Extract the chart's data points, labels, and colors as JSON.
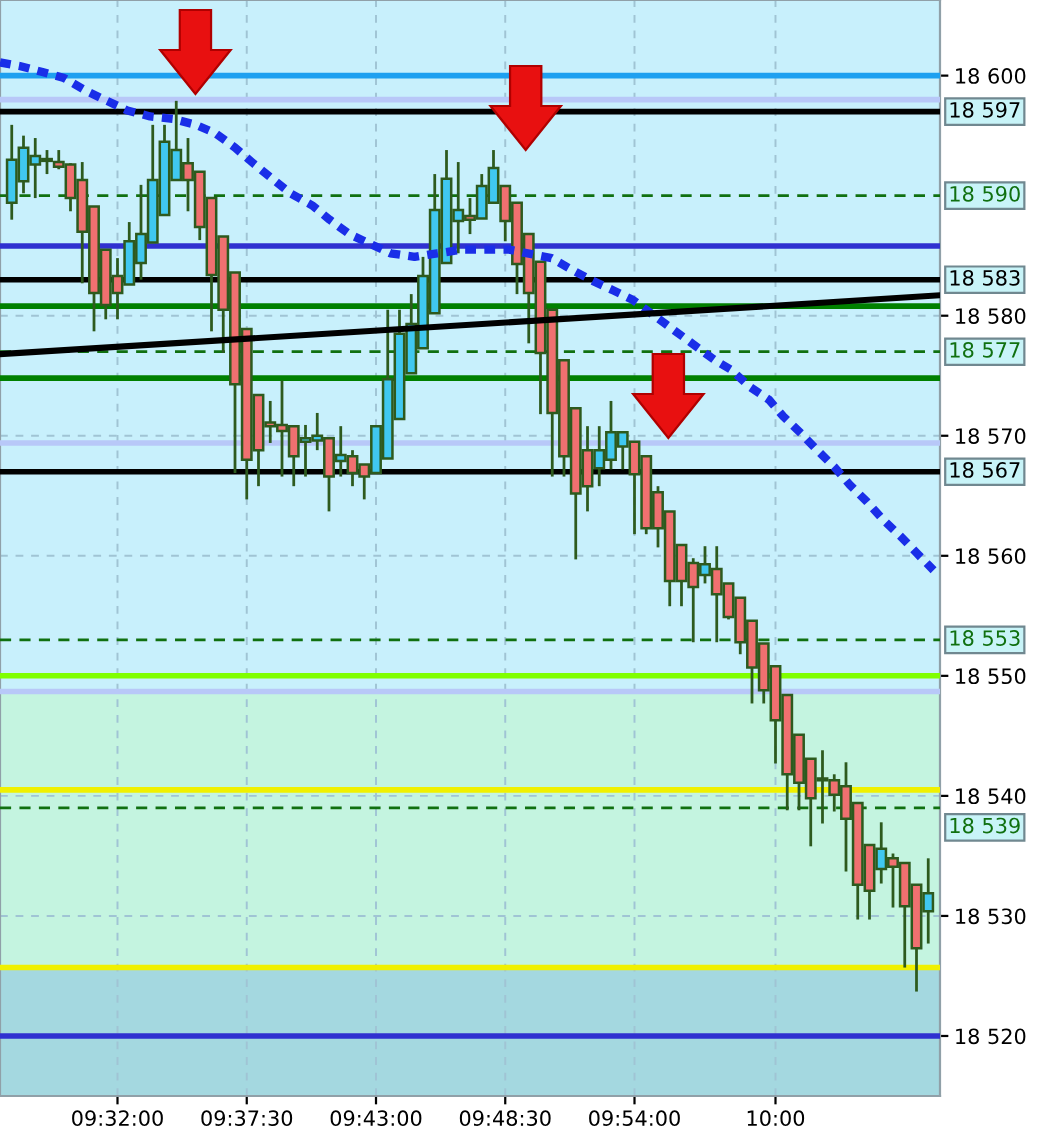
{
  "chart_data": {
    "type": "candlestick",
    "x": [
      9.45833,
      9.46667,
      9.475,
      9.48333,
      9.49167,
      9.5,
      9.50833,
      9.51667,
      9.525,
      9.53333,
      9.54167,
      9.55,
      9.55833,
      9.56667,
      9.575,
      9.58333,
      9.59167,
      9.6,
      9.60833,
      9.61667,
      9.625,
      9.63333,
      9.64167,
      9.65,
      9.65833,
      9.66667,
      9.675,
      9.68333,
      9.69167,
      9.7,
      9.70833,
      9.71667,
      9.725,
      9.73333,
      9.74167,
      9.75,
      9.75833,
      9.76667,
      9.775,
      9.78333,
      9.79167,
      9.8,
      9.80833,
      9.81667,
      9.825,
      9.83333,
      9.84167,
      9.85,
      9.85833,
      9.86667,
      9.875,
      9.88333,
      9.89167,
      9.9,
      9.90833,
      9.91667,
      9.925,
      9.93333,
      9.94167,
      9.95,
      9.95833,
      9.96667,
      9.975,
      9.98333,
      9.99167,
      10.0,
      10.00833,
      10.01667,
      10.025,
      10.03333,
      10.04167,
      10.05,
      10.05833,
      10.06667,
      10.075,
      10.08333,
      10.09167,
      10.1,
      10.10833
    ],
    "ohlc": [
      [
        18589.4,
        18595.9,
        18588.0,
        18593.0
      ],
      [
        18591.2,
        18595.0,
        18590.2,
        18594.0
      ],
      [
        18592.6,
        18594.8,
        18589.8,
        18593.3
      ],
      [
        18593.0,
        18593.8,
        18591.8,
        18592.9
      ],
      [
        18592.8,
        18593.8,
        18592.2,
        18592.4
      ],
      [
        18592.6,
        18592.7,
        18588.7,
        18589.8
      ],
      [
        18591.3,
        18592.8,
        18582.7,
        18587.0
      ],
      [
        18589.1,
        18589.1,
        18578.7,
        18581.9
      ],
      [
        18585.5,
        18585.5,
        18579.7,
        18580.9
      ],
      [
        18583.3,
        18584.8,
        18579.7,
        18581.9
      ],
      [
        18582.6,
        18587.8,
        18582.6,
        18586.2
      ],
      [
        18584.4,
        18590.9,
        18583.0,
        18586.8
      ],
      [
        18586.1,
        18595.9,
        18586.1,
        18591.3
      ],
      [
        18588.4,
        18595.9,
        18588.4,
        18594.5
      ],
      [
        18591.3,
        18597.9,
        18591.3,
        18593.8
      ],
      [
        18592.7,
        18594.8,
        18588.7,
        18591.3
      ],
      [
        18592.0,
        18592.0,
        18586.3,
        18587.4
      ],
      [
        18589.8,
        18589.8,
        18578.7,
        18583.4
      ],
      [
        18586.6,
        18586.6,
        18576.9,
        18580.5
      ],
      [
        18583.6,
        18583.6,
        18566.9,
        18574.3
      ],
      [
        18578.9,
        18578.9,
        18564.7,
        18568.0
      ],
      [
        18573.4,
        18573.4,
        18565.8,
        18568.8
      ],
      [
        18571.1,
        18572.9,
        18569.4,
        18570.8
      ],
      [
        18570.9,
        18574.6,
        18566.6,
        18570.4
      ],
      [
        18570.8,
        18570.8,
        18565.8,
        18568.3
      ],
      [
        18569.5,
        18570.9,
        18566.6,
        18569.8
      ],
      [
        18569.6,
        18571.9,
        18568.8,
        18570.0
      ],
      [
        18569.8,
        18569.8,
        18563.7,
        18566.6
      ],
      [
        18567.9,
        18570.8,
        18566.6,
        18568.4
      ],
      [
        18568.3,
        18568.8,
        18565.8,
        18566.9
      ],
      [
        18567.6,
        18567.6,
        18564.7,
        18566.6
      ],
      [
        18566.9,
        18570.8,
        18566.9,
        18570.8
      ],
      [
        18568.1,
        18580.5,
        18568.1,
        18574.7
      ],
      [
        18571.4,
        18580.5,
        18571.4,
        18578.5
      ],
      [
        18575.2,
        18581.8,
        18575.2,
        18579.3
      ],
      [
        18577.3,
        18584.9,
        18577.3,
        18583.3
      ],
      [
        18580.2,
        18591.8,
        18580.2,
        18588.8
      ],
      [
        18584.4,
        18593.8,
        18584.4,
        18591.4
      ],
      [
        18587.9,
        18592.8,
        18585.2,
        18588.8
      ],
      [
        18588.3,
        18589.8,
        18586.8,
        18588.0
      ],
      [
        18588.1,
        18591.8,
        18588.1,
        18590.8
      ],
      [
        18589.4,
        18593.8,
        18589.4,
        18592.3
      ],
      [
        18590.8,
        18590.8,
        18586.2,
        18587.9
      ],
      [
        18589.4,
        18589.4,
        18581.8,
        18584.3
      ],
      [
        18586.8,
        18586.8,
        18577.7,
        18581.9
      ],
      [
        18584.5,
        18584.5,
        18571.8,
        18576.9
      ],
      [
        18580.5,
        18580.5,
        18566.6,
        18571.9
      ],
      [
        18576.3,
        18576.3,
        18566.6,
        18568.3
      ],
      [
        18572.3,
        18572.3,
        18559.7,
        18565.2
      ],
      [
        18568.8,
        18570.8,
        18563.7,
        18565.8
      ],
      [
        18567.3,
        18570.8,
        18565.8,
        18568.8
      ],
      [
        18568.0,
        18572.9,
        18567.2,
        18570.3
      ],
      [
        18569.1,
        18570.3,
        18567.2,
        18570.3
      ],
      [
        18569.5,
        18569.5,
        18561.8,
        18566.8
      ],
      [
        18568.3,
        18568.3,
        18561.8,
        18562.3
      ],
      [
        18565.3,
        18565.8,
        18560.7,
        18562.3
      ],
      [
        18563.7,
        18563.7,
        18555.8,
        18557.9
      ],
      [
        18560.9,
        18560.9,
        18555.8,
        18557.9
      ],
      [
        18559.4,
        18559.8,
        18552.8,
        18557.4
      ],
      [
        18558.4,
        18560.8,
        18557.7,
        18559.3
      ],
      [
        18558.9,
        18560.8,
        18552.8,
        18556.8
      ],
      [
        18557.7,
        18557.7,
        18554.7,
        18554.9
      ],
      [
        18556.5,
        18556.5,
        18551.8,
        18552.8
      ],
      [
        18554.6,
        18554.6,
        18547.7,
        18550.7
      ],
      [
        18552.7,
        18552.7,
        18547.7,
        18548.8
      ],
      [
        18550.8,
        18550.8,
        18542.7,
        18546.3
      ],
      [
        18548.4,
        18548.4,
        18538.8,
        18541.8
      ],
      [
        18545.1,
        18545.1,
        18538.8,
        18541.1
      ],
      [
        18543.1,
        18543.1,
        18535.8,
        18539.8
      ],
      [
        18541.3,
        18543.8,
        18537.7,
        18541.3
      ],
      [
        18541.3,
        18541.8,
        18538.7,
        18540.1
      ],
      [
        18540.8,
        18542.8,
        18533.7,
        18538.1
      ],
      [
        18539.4,
        18539.4,
        18529.7,
        18532.6
      ],
      [
        18535.9,
        18535.9,
        18529.7,
        18532.1
      ],
      [
        18533.9,
        18537.8,
        18532.7,
        18535.6
      ],
      [
        18534.8,
        18535.2,
        18530.7,
        18534.1
      ],
      [
        18534.4,
        18534.4,
        18525.7,
        18530.8
      ],
      [
        18532.6,
        18532.6,
        18523.7,
        18527.3
      ],
      [
        18530.4,
        18534.8,
        18527.7,
        18531.9
      ]
    ],
    "colors": [
      "#40c8f0",
      "#40c8f0",
      "#40c8f0",
      "#f07070",
      "#f07070",
      "#f07070",
      "#f07070",
      "#f07070",
      "#f07070",
      "#f07070",
      "#40c8f0",
      "#40c8f0",
      "#40c8f0",
      "#40c8f0",
      "#40c8f0",
      "#f07070",
      "#f07070",
      "#f07070",
      "#f07070",
      "#f07070",
      "#f07070",
      "#f07070",
      "#f07070",
      "#f07070",
      "#f07070",
      "#40c8f0",
      "#40c8f0",
      "#f07070",
      "#40c8f0",
      "#f07070",
      "#f07070",
      "#40c8f0",
      "#40c8f0",
      "#40c8f0",
      "#40c8f0",
      "#40c8f0",
      "#40c8f0",
      "#40c8f0",
      "#40c8f0",
      "#f07070",
      "#40c8f0",
      "#40c8f0",
      "#f07070",
      "#f07070",
      "#f07070",
      "#f07070",
      "#f07070",
      "#f07070",
      "#f07070",
      "#f07070",
      "#40c8f0",
      "#40c8f0",
      "#40c8f0",
      "#f07070",
      "#f07070",
      "#f07070",
      "#f07070",
      "#f07070",
      "#f07070",
      "#40c8f0",
      "#f07070",
      "#f07070",
      "#f07070",
      "#f07070",
      "#f07070",
      "#f07070",
      "#f07070",
      "#f07070",
      "#f07070",
      "#f07070",
      "#f07070",
      "#f07070",
      "#f07070",
      "#f07070",
      "#40c8f0",
      "#f07070",
      "#f07070",
      "#f07070",
      "#40c8f0"
    ],
    "series": [
      {
        "type": "line",
        "color": "#1a2ee8",
        "line_style": "dashed",
        "x": [
          9.45,
          9.4639,
          9.4801,
          9.4954,
          9.5101,
          9.524,
          9.5403,
          9.5565,
          9.5726,
          9.5889,
          9.6028,
          9.6167,
          9.6306,
          9.6421,
          9.656,
          9.6713,
          9.6838,
          9.6977,
          9.7268,
          9.744,
          9.7601,
          9.7778,
          9.8111,
          9.8412,
          9.856,
          9.8704,
          9.8851,
          9.899,
          9.9569,
          9.9685,
          9.9815,
          9.9954,
          10.0056,
          10.0181,
          10.0296,
          10.0417,
          10.0528,
          10.0649,
          10.0764,
          10.0889,
          10.1004,
          10.1121
        ],
        "values": [
          18601.1,
          18600.8,
          18600.3,
          18599.8,
          18598.8,
          18598.0,
          18597.1,
          18596.6,
          18596.4,
          18595.9,
          18595.2,
          18594.0,
          18592.6,
          18591.5,
          18590.2,
          18589.2,
          18588.0,
          18586.8,
          18585.2,
          18584.9,
          18585.2,
          18585.5,
          18585.5,
          18584.8,
          18583.8,
          18582.9,
          18582.1,
          18581.3,
          18576.3,
          18575.5,
          18574.1,
          18573.0,
          18571.6,
          18570.2,
          18568.8,
          18567.4,
          18565.9,
          18564.5,
          18563.0,
          18561.6,
          18560.2,
          18558.8
        ]
      },
      {
        "type": "line",
        "color": "#000000",
        "line_style": "solid",
        "x": [
          9.45,
          10.11667
        ],
        "values": [
          18576.8,
          18581.7
        ]
      }
    ],
    "ref_lines": [
      {
        "axis": "y",
        "value": 18600,
        "color": "#1ea0f0"
      },
      {
        "axis": "y",
        "value": 18598,
        "color": "#b8c8f8"
      },
      {
        "axis": "y",
        "value": 18597,
        "label": "18 597",
        "color": "#000000"
      },
      {
        "axis": "y",
        "value": 18590,
        "label": "18 590",
        "color": "#107010",
        "line_style": "dashed"
      },
      {
        "axis": "y",
        "value": 18585.8,
        "color": "#3030d0"
      },
      {
        "axis": "y",
        "value": 18583,
        "label": "18 583",
        "color": "#000000"
      },
      {
        "axis": "y",
        "value": 18580.8,
        "color": "#008000"
      },
      {
        "axis": "y",
        "value": 18577,
        "label": "18 577",
        "color": "#107010",
        "line_style": "dashed"
      },
      {
        "axis": "y",
        "value": 18574.8,
        "color": "#008000"
      },
      {
        "axis": "y",
        "value": 18569.4,
        "color": "#b8c8f8"
      },
      {
        "axis": "y",
        "value": 18567,
        "label": "18 567",
        "color": "#000000"
      },
      {
        "axis": "y",
        "value": 18553,
        "label": "18 553",
        "color": "#107010",
        "line_style": "dashed"
      },
      {
        "axis": "y",
        "value": 18550,
        "color": "#80ff00"
      },
      {
        "axis": "y",
        "value": 18548.7,
        "color": "#b8c8f8"
      },
      {
        "axis": "y",
        "value": 18540.5,
        "color": "#f0f000"
      },
      {
        "axis": "y",
        "value": 18539,
        "label": "18 539",
        "color": "#107010",
        "line_style": "dashed"
      },
      {
        "axis": "y",
        "value": 18525.7,
        "color": "#f0f000"
      },
      {
        "axis": "y",
        "value": 18520,
        "color": "#3030d0"
      }
    ],
    "bands": [
      {
        "axis": "y",
        "from": 18548.7,
        "to": 18606.3,
        "color": "#c8f0fc"
      },
      {
        "axis": "y",
        "from": 18525.7,
        "to": 18548.7,
        "color": "#c4f4e0"
      },
      {
        "axis": "y",
        "from": 18515,
        "to": 18525.7,
        "color": "#a4d8e0"
      }
    ],
    "xlim": [
      9.45,
      10.11667
    ],
    "xticks": [
      {
        "value": 9.53333,
        "label": "09:32:00"
      },
      {
        "value": 9.625,
        "label": "09:37:30"
      },
      {
        "value": 9.71667,
        "label": "09:43:00"
      },
      {
        "value": 9.80833,
        "label": "09:48:30"
      },
      {
        "value": 9.9,
        "label": "09:54:00"
      },
      {
        "value": 10.0,
        "label": "10:00"
      }
    ],
    "ylim": [
      18515,
      18606.3
    ],
    "yticks": [
      {
        "value": 18600,
        "label": "18 600"
      },
      {
        "value": 18580,
        "label": "18 580"
      },
      {
        "value": 18570,
        "label": "18 570"
      },
      {
        "value": 18560,
        "label": "18 560"
      },
      {
        "value": 18550,
        "label": "18 550"
      },
      {
        "value": 18540,
        "label": "18 540"
      },
      {
        "value": 18530,
        "label": "18 530"
      },
      {
        "value": 18520,
        "label": "18 520"
      }
    ],
    "grid": true
  }
}
